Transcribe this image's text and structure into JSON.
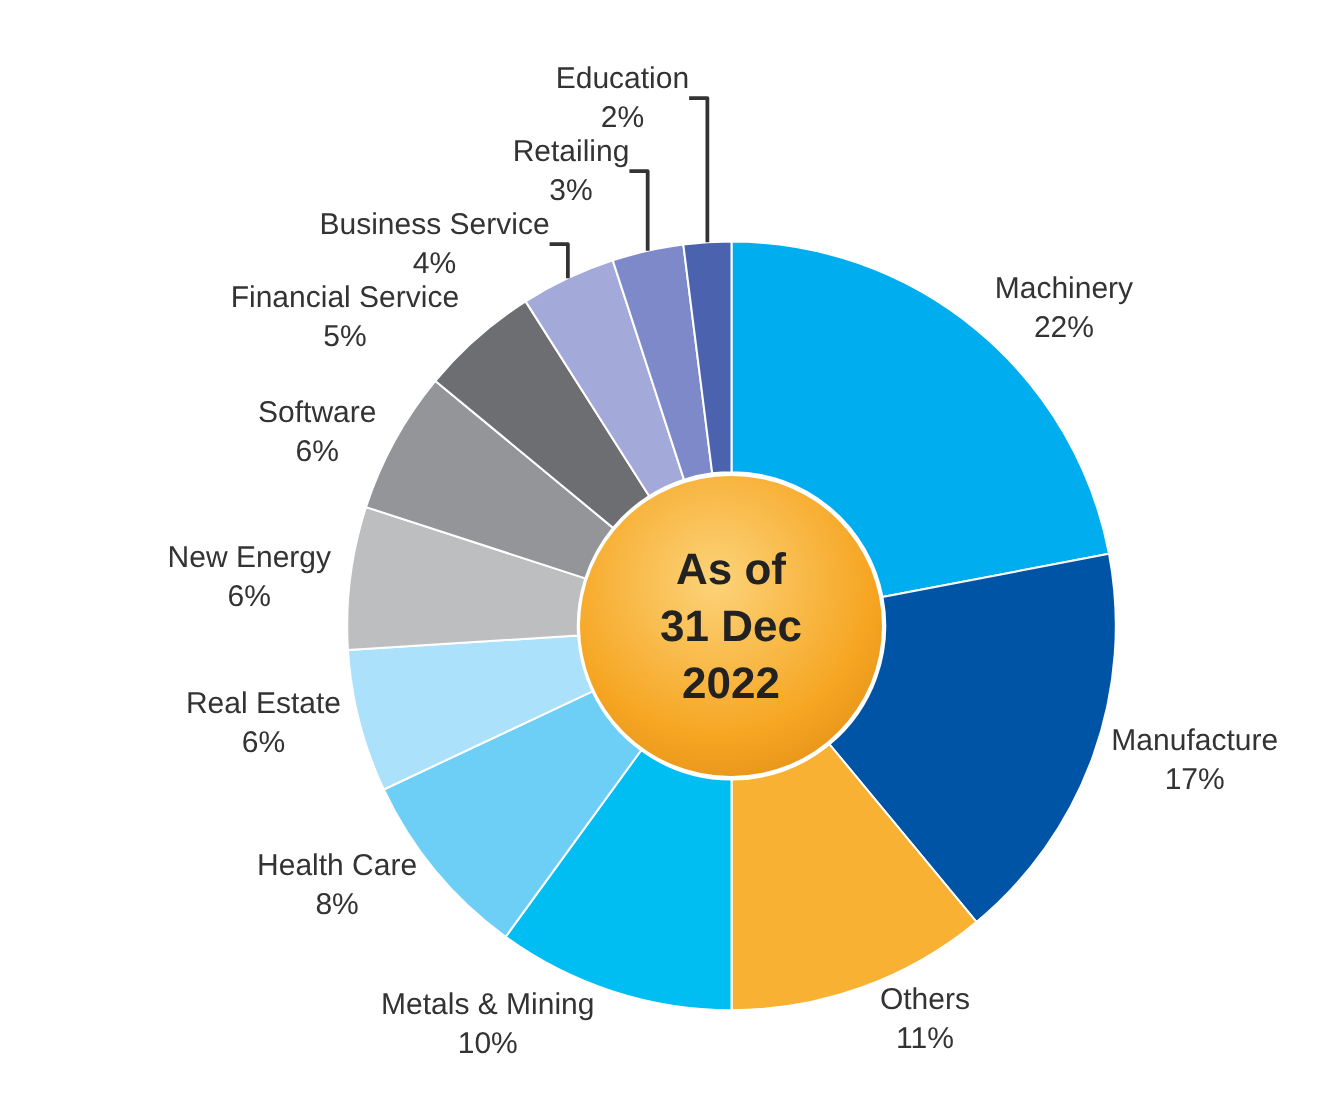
{
  "chart_data": {
    "type": "donut",
    "categories": [
      "Machinery",
      "Manufacture",
      "Others",
      "Metals & Mining",
      "Health Care",
      "Real Estate",
      "New Energy",
      "Software",
      "Financial Service",
      "Business Service",
      "Retailing",
      "Education"
    ],
    "values": [
      22,
      17,
      11,
      10,
      8,
      6,
      6,
      6,
      5,
      4,
      3,
      2
    ],
    "value_labels": [
      "22%",
      "17%",
      "11%",
      "10%",
      "8%",
      "6%",
      "6%",
      "6%",
      "5%",
      "4%",
      "3%",
      "2%"
    ],
    "colors": [
      "#00aeef",
      "#0054a6",
      "#f8b133",
      "#00bdf2",
      "#6dcff6",
      "#abe1fa",
      "#bcbec0",
      "#939598",
      "#6d6e71",
      "#a3a9d8",
      "#7d89c8",
      "#4b63ae"
    ],
    "annotations": [
      "As of\n31 Dec\n2022"
    ],
    "legend": false
  }
}
